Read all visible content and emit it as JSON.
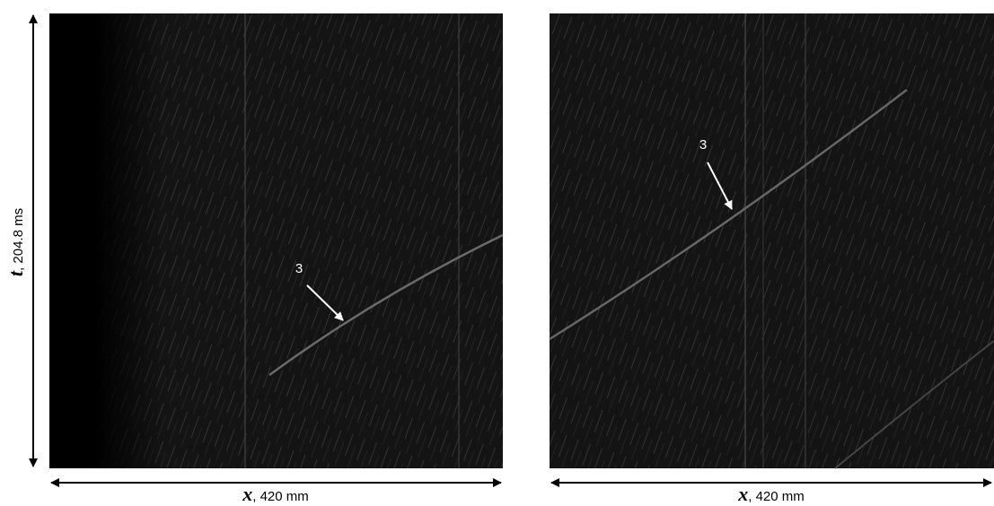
{
  "y_label": {
    "symbol": "t",
    "text": ", 204.8 ms"
  },
  "panels": [
    {
      "x_label": {
        "symbol": "x",
        "text": ", 420 mm"
      },
      "annotation": "3"
    },
    {
      "x_label": {
        "symbol": "x",
        "text": ", 420 mm"
      },
      "annotation": "3"
    }
  ]
}
